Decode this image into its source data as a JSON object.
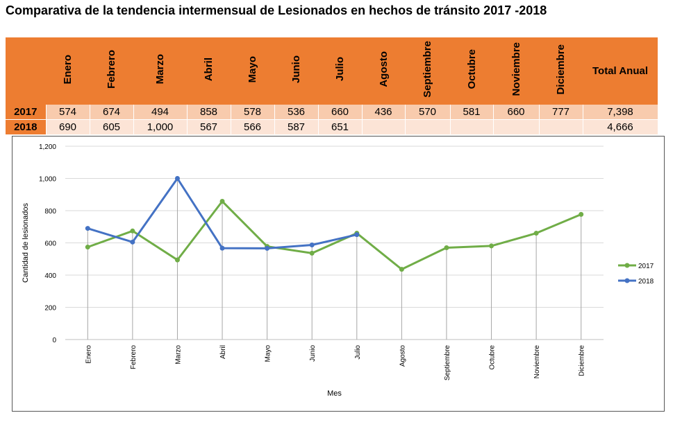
{
  "title": "Comparativa de la tendencia intermensual de Lesionados en hechos de tránsito 2017 -2018",
  "table": {
    "headers": [
      "Enero",
      "Febrero",
      "Marzo",
      "Abril",
      "Mayo",
      "Junio",
      "Julio",
      "Agosto",
      "Septiembre",
      "Octubre",
      "Noviembre",
      "Diciembre"
    ],
    "total_header": "Total Anual",
    "rows": [
      {
        "label": "2017",
        "values": [
          "574",
          "674",
          "494",
          "858",
          "578",
          "536",
          "660",
          "436",
          "570",
          "581",
          "660",
          "777"
        ],
        "total": "7,398"
      },
      {
        "label": "2018",
        "values": [
          "690",
          "605",
          "1,000",
          "567",
          "566",
          "587",
          "651",
          "",
          "",
          "",
          "",
          ""
        ],
        "total": "4,666"
      }
    ]
  },
  "chart_data": {
    "type": "line",
    "title": "",
    "xlabel": "Mes",
    "ylabel": "Cantidad de lesionados",
    "categories": [
      "Enero",
      "Febrero",
      "Marzo",
      "Abril",
      "Mayo",
      "Junio",
      "Julio",
      "Agosto",
      "Septiembre",
      "Octubre",
      "Noviembre",
      "Diciembre"
    ],
    "ylim": [
      0,
      1200
    ],
    "yticks": [
      0,
      200,
      400,
      600,
      800,
      1000,
      1200
    ],
    "ytick_labels": [
      "0",
      "200",
      "400",
      "600",
      "800",
      "1,000",
      "1,200"
    ],
    "grid": true,
    "legend_position": "right",
    "series": [
      {
        "name": "2017",
        "color": "#70AD47",
        "values": [
          574,
          674,
          494,
          858,
          578,
          536,
          660,
          436,
          570,
          581,
          660,
          777
        ]
      },
      {
        "name": "2018",
        "color": "#4472C4",
        "values": [
          690,
          605,
          1000,
          567,
          566,
          587,
          651,
          null,
          null,
          null,
          null,
          null
        ]
      }
    ]
  }
}
